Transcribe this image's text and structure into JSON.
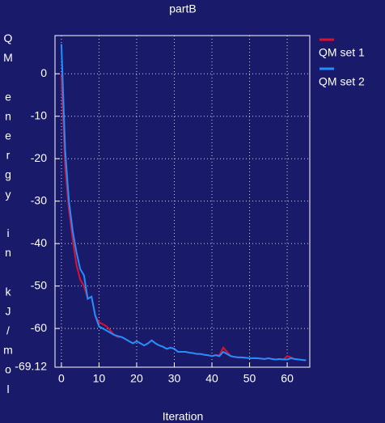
{
  "chart_data": {
    "type": "line",
    "title": "partB",
    "x_label": "Iteration",
    "y_label": "QM energy in kJ/mol",
    "x": [
      0,
      1,
      2,
      3,
      4,
      5,
      6,
      7,
      8,
      9,
      10,
      11,
      12,
      13,
      14,
      15,
      16,
      17,
      18,
      19,
      20,
      21,
      22,
      23,
      24,
      25,
      26,
      27,
      28,
      29,
      30,
      31,
      32,
      33,
      34,
      35,
      36,
      37,
      38,
      39,
      40,
      41,
      42,
      43,
      44,
      45,
      46,
      47,
      48,
      49,
      50,
      51,
      52,
      53,
      54,
      55,
      56,
      57,
      58,
      59,
      60,
      61,
      62,
      63,
      64,
      65
    ],
    "series": [
      {
        "name": "QM set 1",
        "color": "#e0102c",
        "values": [
          0,
          -22,
          -32,
          -39,
          -45,
          -48.5,
          -50,
          -53,
          -52.5,
          -57,
          -58.5,
          -59,
          -59.5,
          -60.5,
          -61.5,
          -62,
          -62,
          -62.5,
          -63,
          -63.5,
          -63,
          -63.5,
          -64,
          -63.5,
          -62.8,
          -63.5,
          -64,
          -64.3,
          -64.8,
          -64.5,
          -64.8,
          -65.5,
          -65.5,
          -65.5,
          -65.7,
          -65.8,
          -66,
          -66,
          -66.2,
          -66.3,
          -66.5,
          -66.3,
          -66.3,
          -64.5,
          -65.5,
          -66.5,
          -66.7,
          -66.8,
          -66.8,
          -66.9,
          -67,
          -67,
          -67,
          -67.1,
          -67.2,
          -67,
          -67.2,
          -67.3,
          -67.2,
          -67.3,
          -66.5,
          -66.8,
          -67.2,
          -67.3,
          -67.4,
          -67.5
        ]
      },
      {
        "name": "QM set 2",
        "color": "#1e90ff",
        "values": [
          7,
          -18,
          -30,
          -37,
          -42,
          -46,
          -47.5,
          -53,
          -52.5,
          -57,
          -59.5,
          -60,
          -60.5,
          -61,
          -61.5,
          -61.8,
          -62,
          -62.5,
          -63,
          -63.5,
          -63,
          -63.5,
          -64,
          -63.5,
          -62.8,
          -63.5,
          -64,
          -64.3,
          -64.8,
          -64.5,
          -64.8,
          -65.5,
          -65.5,
          -65.5,
          -65.7,
          -65.8,
          -66,
          -66,
          -66.2,
          -66.3,
          -66.5,
          -66.3,
          -66.5,
          -65.5,
          -66,
          -66.5,
          -66.7,
          -66.8,
          -66.8,
          -66.9,
          -67,
          -67,
          -67,
          -67.1,
          -67.2,
          -67,
          -67.2,
          -67.3,
          -67.2,
          -67.3,
          -67.3,
          -67,
          -67.2,
          -67.3,
          -67.4,
          -67.5
        ]
      }
    ],
    "xlim": [
      -1.7,
      66
    ],
    "xticks": [
      0,
      10,
      20,
      30,
      40,
      50,
      60
    ],
    "ylim": [
      -69.12,
      9
    ],
    "yticks": [
      -69.12,
      -60,
      -50,
      -40,
      -30,
      -20,
      -10,
      0
    ],
    "grid": true,
    "legend": "outside-right"
  }
}
